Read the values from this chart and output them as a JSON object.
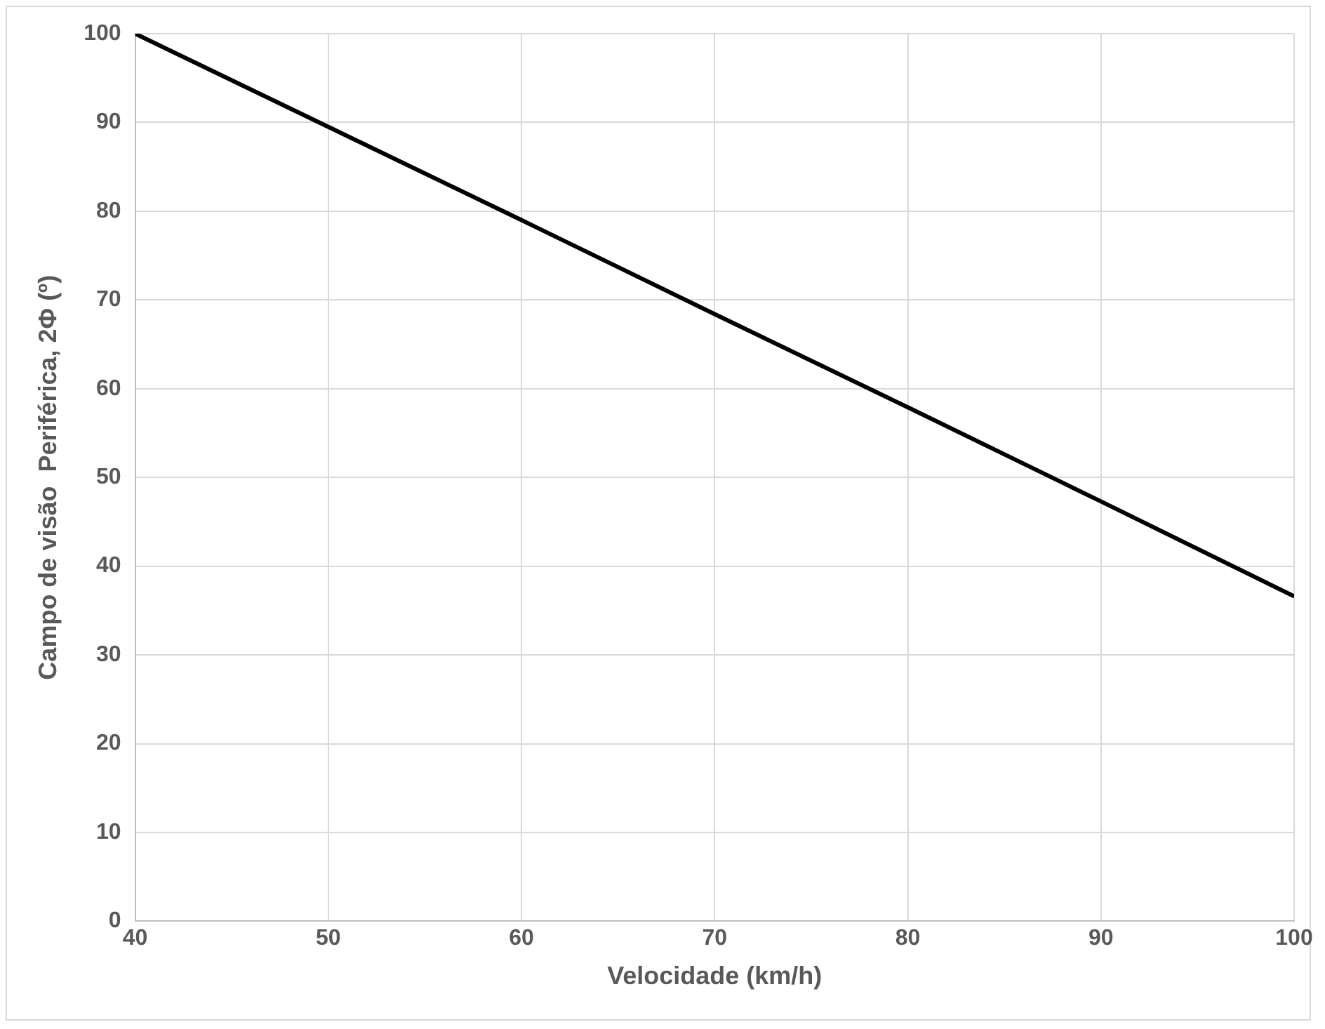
{
  "chart_data": {
    "type": "line",
    "xlabel": "Velocidade (km/h)",
    "ylabel": "Campo de visão  Periférica, 2Φ (º)",
    "x": [
      40,
      50,
      60,
      70,
      80,
      90,
      100
    ],
    "series": [
      {
        "color": "#000000",
        "values": [
          100,
          89.5,
          79,
          68.4,
          57.9,
          47.3,
          36.6
        ]
      }
    ],
    "xlim": [
      40,
      100
    ],
    "xticks": [
      40,
      50,
      60,
      70,
      80,
      90,
      100
    ],
    "ylim": [
      0,
      100
    ],
    "yticks": [
      0,
      10,
      20,
      30,
      40,
      50,
      60,
      70,
      80,
      90,
      100
    ],
    "grid": true,
    "legend": false,
    "marker": "none",
    "line_style": "solid"
  }
}
